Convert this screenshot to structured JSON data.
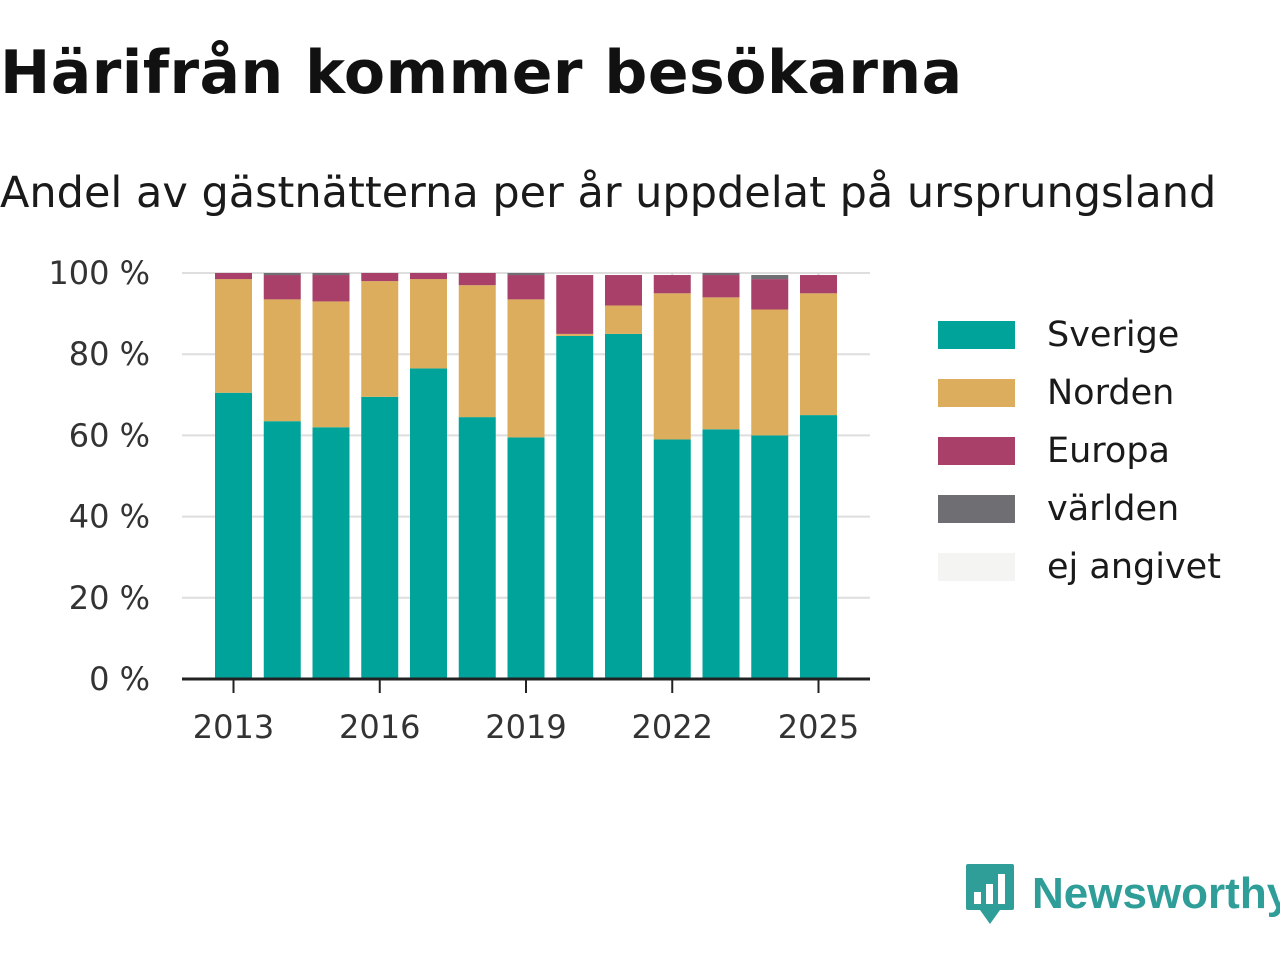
{
  "title": "Härifrån kommer besökarna",
  "subtitle": "Andel av gästnätterna per år uppdelat på ursprungsland",
  "brand": {
    "name": "Newsworthy",
    "icon": "newsworthy-logo-icon",
    "color": "#2f9e99"
  },
  "chart_data": {
    "type": "bar",
    "stacked": true,
    "categories": [
      "2013",
      "2014",
      "2015",
      "2016",
      "2017",
      "2018",
      "2019",
      "2020",
      "2021",
      "2022",
      "2023",
      "2024",
      "2025"
    ],
    "series": [
      {
        "name": "Sverige",
        "color": "#00a399",
        "values": [
          70.5,
          63.5,
          62,
          69.5,
          76.5,
          64.5,
          59.5,
          84.5,
          85,
          59,
          61.5,
          60,
          65
        ]
      },
      {
        "name": "Norden",
        "color": "#dbad5d",
        "values": [
          28,
          30,
          31,
          28.5,
          22,
          32.5,
          34,
          0.5,
          7,
          36,
          32.5,
          31,
          30
        ]
      },
      {
        "name": "Europa",
        "color": "#a8406a",
        "values": [
          1.5,
          6,
          6.5,
          2,
          1.5,
          3,
          6,
          14.5,
          7.5,
          4.5,
          5.5,
          7.5,
          4.5
        ]
      },
      {
        "name": "världen",
        "color": "#6f6f73",
        "values": [
          0,
          0.5,
          0.5,
          0,
          0,
          0,
          0.5,
          0,
          0,
          0,
          0.5,
          1,
          0
        ]
      },
      {
        "name": "ej angivet",
        "color": "#f4f4f2",
        "values": [
          0,
          0,
          0,
          0,
          0,
          0,
          0,
          0,
          0,
          0,
          0,
          0,
          0
        ]
      }
    ],
    "y_ticks": [
      "0 %",
      "20 %",
      "40 %",
      "60 %",
      "80 %",
      "100 %"
    ],
    "y_tick_values": [
      0,
      20,
      40,
      60,
      80,
      100
    ],
    "x_tick_labels": [
      "2013",
      "2016",
      "2019",
      "2022",
      "2025"
    ],
    "ylim": [
      0,
      100
    ],
    "xlabel": "",
    "ylabel": "",
    "grid": true,
    "legend_position": "right"
  }
}
